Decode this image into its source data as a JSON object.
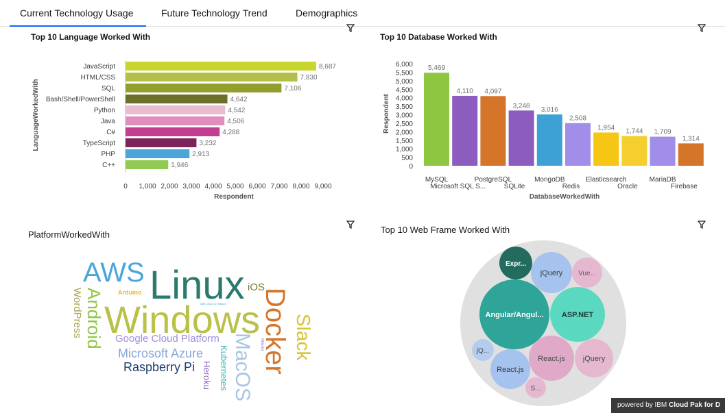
{
  "tabs": [
    {
      "label": "Current Technology Usage",
      "active": true
    },
    {
      "label": "Future Technology Trend",
      "active": false
    },
    {
      "label": "Demographics",
      "active": false
    }
  ],
  "panels": {
    "languages_title": "Top 10 Language Worked With",
    "databases_title": "Top 10 Database Worked With",
    "platform_title": "PlatformWorkedWith",
    "webframe_title": "Top 10 Web Frame Worked With"
  },
  "chart_data": [
    {
      "type": "bar",
      "orientation": "horizontal",
      "title": "Top 10 Language Worked With",
      "xlabel": "Respondent",
      "ylabel": "LanguageWorkedWith",
      "xlim": [
        0,
        9000
      ],
      "xticks": [
        "0",
        "1,000",
        "2,000",
        "3,000",
        "4,000",
        "5,000",
        "6,000",
        "7,000",
        "8,000",
        "9,000"
      ],
      "categories": [
        "JavaScript",
        "HTML/CSS",
        "SQL",
        "Bash/Shell/PowerShell",
        "Python",
        "Java",
        "C#",
        "TypeScript",
        "PHP",
        "C++"
      ],
      "values": [
        8687,
        7830,
        7106,
        4642,
        4542,
        4506,
        4288,
        3232,
        2913,
        1946
      ],
      "value_labels": [
        "8,687",
        "7,830",
        "7,106",
        "4,642",
        "4,542",
        "4,506",
        "4,288",
        "3,232",
        "2,913",
        "1,946"
      ],
      "colors": [
        "#c8d52c",
        "#b4bf4a",
        "#939f2c",
        "#6b6f2a",
        "#e8bcd1",
        "#e08fbc",
        "#c23e8e",
        "#7d2359",
        "#4aa5d8",
        "#92c953"
      ]
    },
    {
      "type": "bar",
      "orientation": "vertical",
      "title": "Top 10 Database Worked With",
      "xlabel": "DatabaseWorkedWith",
      "ylabel": "Respondent",
      "ylim": [
        0,
        6000
      ],
      "yticks": [
        "0",
        "500",
        "1,000",
        "1,500",
        "2,000",
        "2,500",
        "3,000",
        "3,500",
        "4,000",
        "4,500",
        "5,000",
        "5,500",
        "6,000"
      ],
      "categories": [
        "MySQL",
        "Microsoft SQL S...",
        "PostgreSQL",
        "SQLite",
        "MongoDB",
        "Redis",
        "Elasticsearch",
        "Oracle",
        "MariaDB",
        "Firebase"
      ],
      "values": [
        5469,
        4110,
        4097,
        3248,
        3016,
        2508,
        1954,
        1744,
        1709,
        1314
      ],
      "value_labels": [
        "5,469",
        "4,110",
        "4,097",
        "3,248",
        "3,016",
        "2,508",
        "1,954",
        "1,744",
        "1,709",
        "1,314"
      ],
      "colors": [
        "#8ec641",
        "#8d5cbf",
        "#d4752a",
        "#8d5cbf",
        "#3ea1d6",
        "#a08ee8",
        "#f5c614",
        "#f5cf2d",
        "#a08ee8",
        "#d4752a"
      ]
    },
    {
      "type": "wordcloud",
      "title": "PlatformWorkedWith",
      "words": [
        {
          "text": "Linux",
          "color": "#2b7a6e"
        },
        {
          "text": "Windows",
          "color": "#b9c14a"
        },
        {
          "text": "AWS",
          "color": "#4aa5d8"
        },
        {
          "text": "Docker",
          "color": "#d4752a"
        },
        {
          "text": "Android",
          "color": "#8ec641"
        },
        {
          "text": "WordPress",
          "color": "#a8a550"
        },
        {
          "text": "Slack",
          "color": "#d8c232"
        },
        {
          "text": "MacOS",
          "color": "#a9c4e3"
        },
        {
          "text": "Google Cloud Platform",
          "color": "#9e8ce0"
        },
        {
          "text": "Microsoft Azure",
          "color": "#87a6d9"
        },
        {
          "text": "Raspberry Pi",
          "color": "#1c3f6e"
        },
        {
          "text": "Kubernetes",
          "color": "#3ab5ac"
        },
        {
          "text": "Heroku",
          "color": "#8a62c4"
        },
        {
          "text": "iOS",
          "color": "#7a7a2a"
        },
        {
          "text": "Arduino",
          "color": "#e8b82c"
        },
        {
          "text": "IBM Cloud or Watson",
          "color": "#4aa5d8"
        },
        {
          "text": "Other(s)",
          "color": "#8a62c4"
        }
      ]
    },
    {
      "type": "bubble",
      "title": "Top 10 Web Frame Worked With",
      "bubbles": [
        {
          "label": "Angular/Angul...",
          "color": "#2fa59a",
          "text_color": "#ffffff"
        },
        {
          "label": "ASP.NET",
          "color": "#5ad8c0",
          "text_color": "#1d3a36"
        },
        {
          "label": "Expr...",
          "color": "#236b5c",
          "text_color": "#ffffff"
        },
        {
          "label": "jQuery",
          "color": "#a5c3ee",
          "text_color": "#3a3a3a"
        },
        {
          "label": "Vue...",
          "color": "#e6b8d0",
          "text_color": "#5a5a5a"
        },
        {
          "label": "React.js",
          "color": "#e0a9c8",
          "text_color": "#4a4a4a"
        },
        {
          "label": "jQuery",
          "color": "#e6b8d0",
          "text_color": "#4a4a4a"
        },
        {
          "label": "React.js",
          "color": "#a5c3ee",
          "text_color": "#3a3a3a"
        },
        {
          "label": "jQ...",
          "color": "#b4cdef",
          "text_color": "#4a4a4a"
        },
        {
          "label": "S...",
          "color": "#e6b8d0",
          "text_color": "#4a4a4a"
        }
      ]
    }
  ],
  "footer": {
    "prefix": "powered by IBM ",
    "brand": "Cloud Pak for D"
  }
}
